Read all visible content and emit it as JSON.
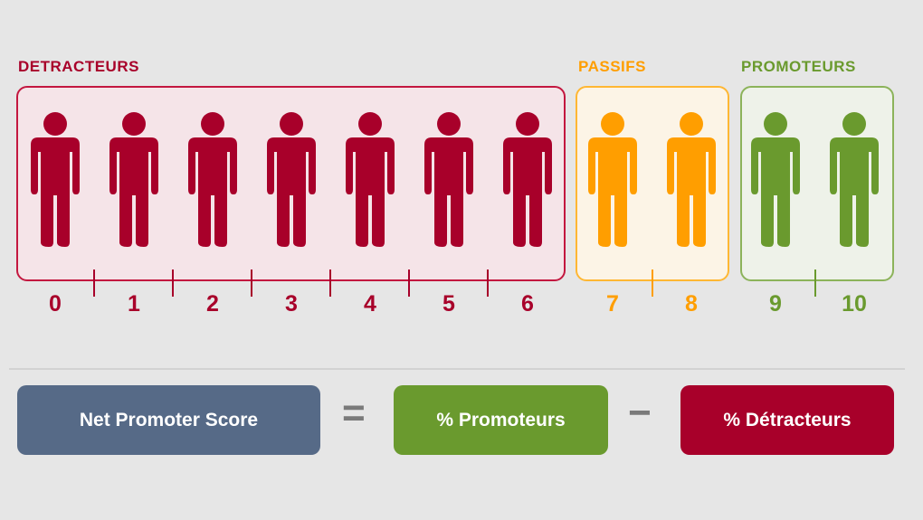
{
  "colors": {
    "detractors": "#a8002a",
    "passives": "#ff9e00",
    "promoters": "#6a9a2e",
    "nps": "#566a87"
  },
  "groups": [
    {
      "label": "DETRACTEURS",
      "scores": [
        "0",
        "1",
        "2",
        "3",
        "4",
        "5",
        "6"
      ]
    },
    {
      "label": "PASSIFS",
      "scores": [
        "7",
        "8"
      ]
    },
    {
      "label": "PROMOTEURS",
      "scores": [
        "9",
        "10"
      ]
    }
  ],
  "formula": {
    "nps": "Net Promoter Score",
    "equals": "=",
    "promoters": "% Promoteurs",
    "minus": "−",
    "detractors": "% Détracteurs"
  }
}
